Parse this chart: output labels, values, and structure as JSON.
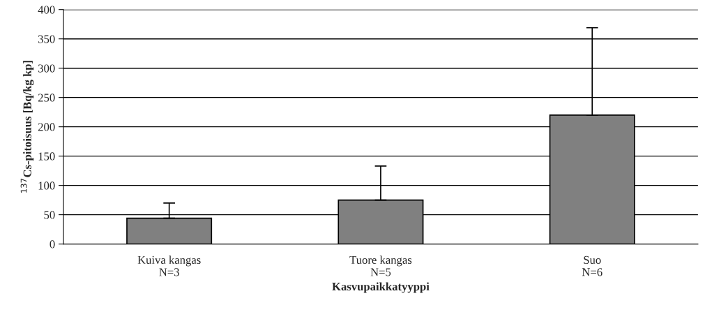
{
  "chart_data": {
    "type": "bar",
    "categories": [
      "Kuiva kangas\nN=3",
      "Tuore kangas\nN=5",
      "Suo\nN=6"
    ],
    "values": [
      44,
      75,
      220
    ],
    "errors": [
      [
        44,
        70
      ],
      [
        75,
        133
      ],
      [
        220,
        369
      ]
    ],
    "color": "#808080",
    "xlabel": "Kasvupaikkatyyppi",
    "ylabel": "$^{137}$Cs-pitoisuus [Bq/kg kp]",
    "ylim": [
      0,
      400
    ],
    "yticks": [
      0,
      50,
      100,
      150,
      200,
      250,
      300,
      350,
      400
    ],
    "grid": "y",
    "legend": false
  }
}
